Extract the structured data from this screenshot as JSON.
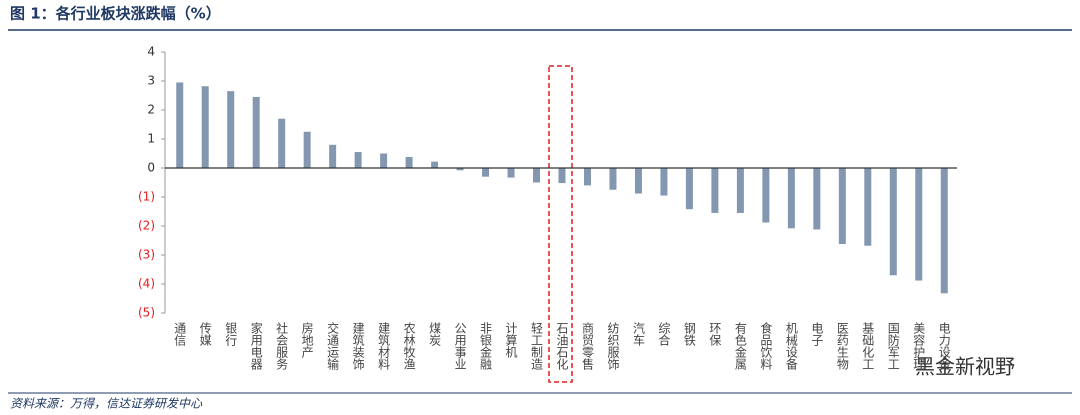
{
  "chart_data": {
    "type": "bar",
    "title": "图 1：各行业板块涨跌幅（%）",
    "source": "资料来源：万得，信达证券研发中心",
    "watermark": "黑金新视野",
    "categories": [
      "通信",
      "传媒",
      "银行",
      "家用电器",
      "社会服务",
      "房地产",
      "交通运输",
      "建筑装饰",
      "建筑材料",
      "农林牧渔",
      "煤炭",
      "公用事业",
      "非银金融",
      "计算机",
      "轻工制造",
      "石油石化",
      "商贸零售",
      "纺织服饰",
      "汽车",
      "综合",
      "钢铁",
      "环保",
      "有色金属",
      "食品饮料",
      "机械设备",
      "电子",
      "医药生物",
      "基础化工",
      "国防军工",
      "美容护理",
      "电力设备"
    ],
    "values": [
      2.95,
      2.82,
      2.65,
      2.45,
      1.7,
      1.25,
      0.8,
      0.55,
      0.5,
      0.38,
      0.22,
      -0.08,
      -0.3,
      -0.33,
      -0.5,
      -0.52,
      -0.6,
      -0.75,
      -0.88,
      -0.95,
      -1.42,
      -1.55,
      -1.55,
      -1.88,
      -2.08,
      -2.12,
      -2.62,
      -2.68,
      -3.7,
      -3.88,
      -4.32
    ],
    "color": "#8497b0",
    "negative_tick_color": "#e02020",
    "ylim": [
      -5,
      4
    ],
    "yticks": [
      4,
      3,
      2,
      1,
      0,
      {
        "value": -1,
        "label": "(1)"
      },
      {
        "value": -2,
        "label": "(2)"
      },
      {
        "value": -3,
        "label": "(3)"
      },
      {
        "value": -4,
        "label": "(4)"
      },
      {
        "value": -5,
        "label": "(5)"
      }
    ],
    "grid": false
  }
}
